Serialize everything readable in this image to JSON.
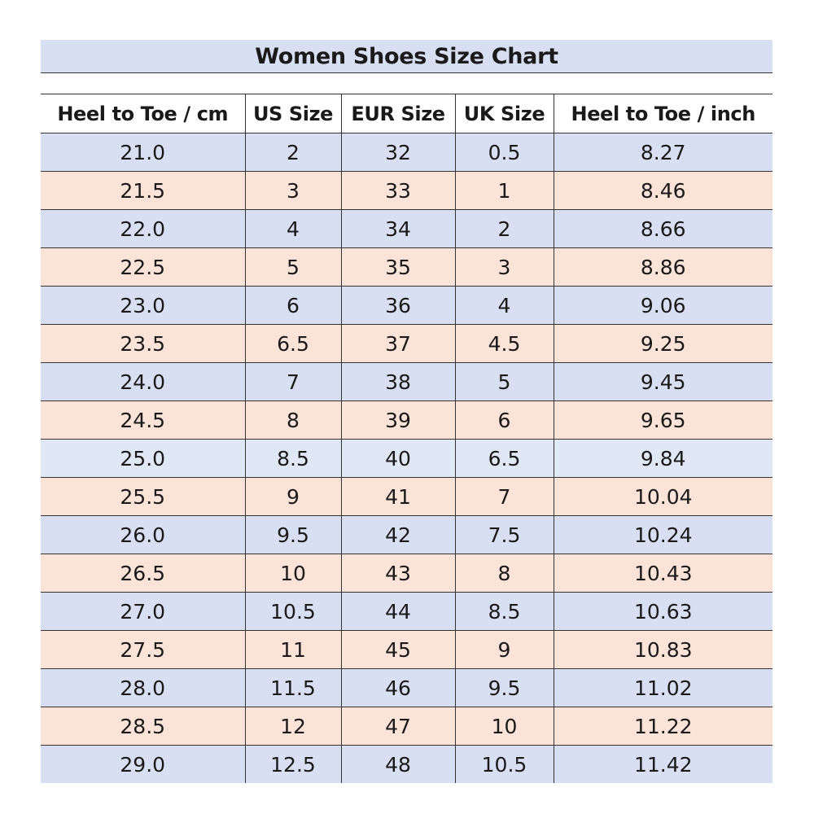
{
  "chart_data": {
    "type": "table",
    "title": "Women Shoes Size Chart",
    "columns": [
      "Heel to Toe / cm",
      "US Size",
      "EUR Size",
      "UK Size",
      "Heel to Toe / inch"
    ],
    "rows": [
      [
        "21.0",
        "2",
        "32",
        "0.5",
        "8.27"
      ],
      [
        "21.5",
        "3",
        "33",
        "1",
        "8.46"
      ],
      [
        "22.0",
        "4",
        "34",
        "2",
        "8.66"
      ],
      [
        "22.5",
        "5",
        "35",
        "3",
        "8.86"
      ],
      [
        "23.0",
        "6",
        "36",
        "4",
        "9.06"
      ],
      [
        "23.5",
        "6.5",
        "37",
        "4.5",
        "9.25"
      ],
      [
        "24.0",
        "7",
        "38",
        "5",
        "9.45"
      ],
      [
        "24.5",
        "8",
        "39",
        "6",
        "9.65"
      ],
      [
        "25.0",
        "8.5",
        "40",
        "6.5",
        "9.84"
      ],
      [
        "25.5",
        "9",
        "41",
        "7",
        "10.04"
      ],
      [
        "26.0",
        "9.5",
        "42",
        "7.5",
        "10.24"
      ],
      [
        "26.5",
        "10",
        "43",
        "8",
        "10.43"
      ],
      [
        "27.0",
        "10.5",
        "44",
        "8.5",
        "10.63"
      ],
      [
        "27.5",
        "11",
        "45",
        "9",
        "10.83"
      ],
      [
        "28.0",
        "11.5",
        "46",
        "9.5",
        "11.02"
      ],
      [
        "28.5",
        "12",
        "47",
        "10",
        "11.22"
      ],
      [
        "29.0",
        "12.5",
        "48",
        "10.5",
        "11.42"
      ]
    ],
    "row_colors": [
      "blue",
      "pink",
      "blue",
      "pink",
      "blue",
      "pink",
      "blue",
      "pink",
      "light",
      "pink",
      "blue",
      "pink",
      "blue",
      "pink",
      "blue",
      "pink",
      "blue"
    ],
    "colors": {
      "title_background": "#d9dff2",
      "blue": "#d9dff2",
      "pink": "#fbe3d8",
      "light": "#e1e8f5",
      "border": "#333333"
    }
  }
}
